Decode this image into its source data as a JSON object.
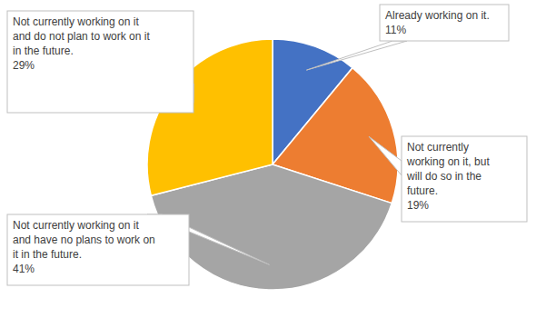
{
  "chart_data": {
    "type": "pie",
    "categories": [
      "Already working on it.",
      "Not currently working on it, but will do so in the future.",
      "Not currently working on it and have no plans to work on it in the future.",
      "Not currently working on it and do not plan to work on it in the future."
    ],
    "values": [
      11,
      19,
      41,
      29
    ],
    "value_labels": [
      "11%",
      "19%",
      "41%",
      "29%"
    ],
    "colors": [
      "#4472c4",
      "#ed7d31",
      "#a5a5a5",
      "#ffc000"
    ],
    "data_labels": true
  }
}
